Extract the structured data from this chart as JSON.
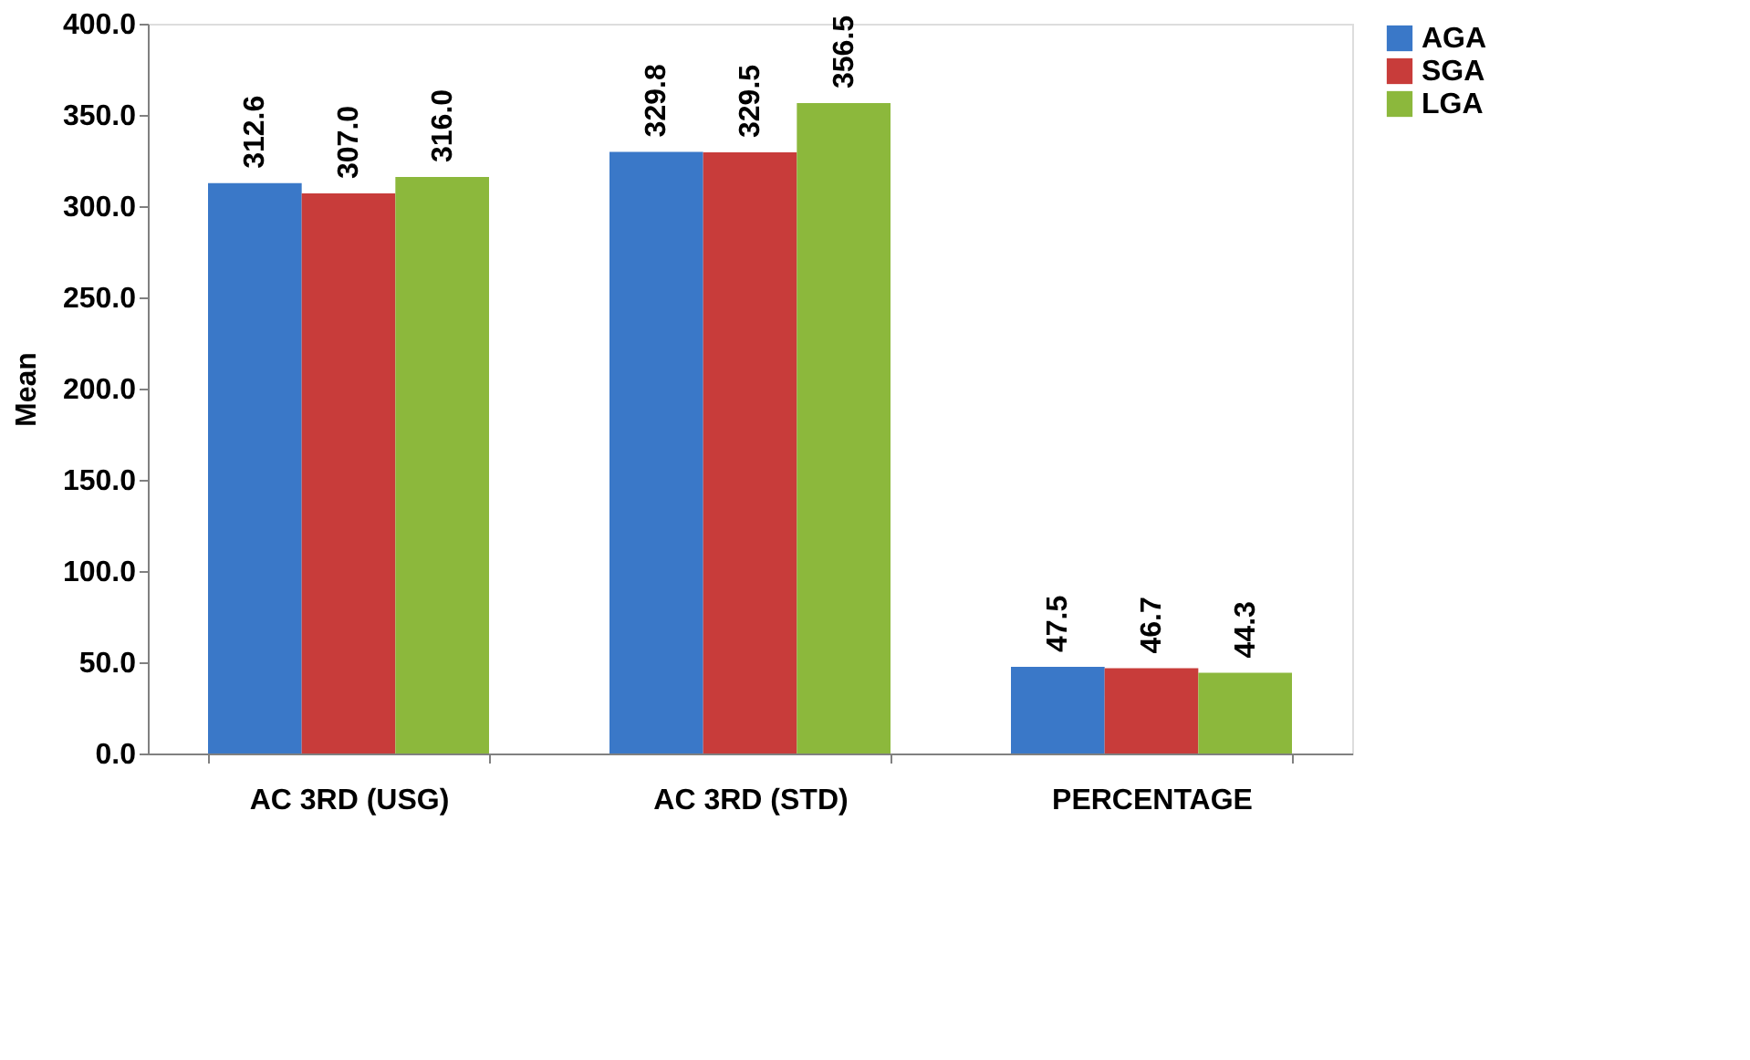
{
  "chart_data": {
    "type": "bar",
    "ylabel": "Mean",
    "categories": [
      "AC 3RD (USG)",
      "AC 3RD (STD)",
      "PERCENTAGE"
    ],
    "series": [
      {
        "name": "AGA",
        "color": "#3a78c8",
        "values": [
          312.6,
          329.8,
          47.5
        ],
        "value_labels": [
          "312.6",
          "329.8",
          "47.5"
        ]
      },
      {
        "name": "SGA",
        "color": "#c83c3a",
        "values": [
          307.0,
          329.5,
          46.7
        ],
        "value_labels": [
          "307.0",
          "329.5",
          "46.7"
        ]
      },
      {
        "name": "LGA",
        "color": "#8cb83c",
        "values": [
          316.0,
          356.5,
          44.3
        ],
        "value_labels": [
          "316.0",
          "356.5",
          "44.3"
        ]
      }
    ],
    "ylim": [
      0,
      400
    ],
    "yticks": [
      {
        "value": 0,
        "label": "0.0"
      },
      {
        "value": 50,
        "label": "50.0"
      },
      {
        "value": 100,
        "label": "100.0"
      },
      {
        "value": 150,
        "label": "150.0"
      },
      {
        "value": 200,
        "label": "200.0"
      },
      {
        "value": 250,
        "label": "250.0"
      },
      {
        "value": 300,
        "label": "300.0"
      },
      {
        "value": 350,
        "label": "350.0"
      },
      {
        "value": 400,
        "label": "400.0"
      }
    ],
    "grid": false,
    "legend": "right"
  }
}
